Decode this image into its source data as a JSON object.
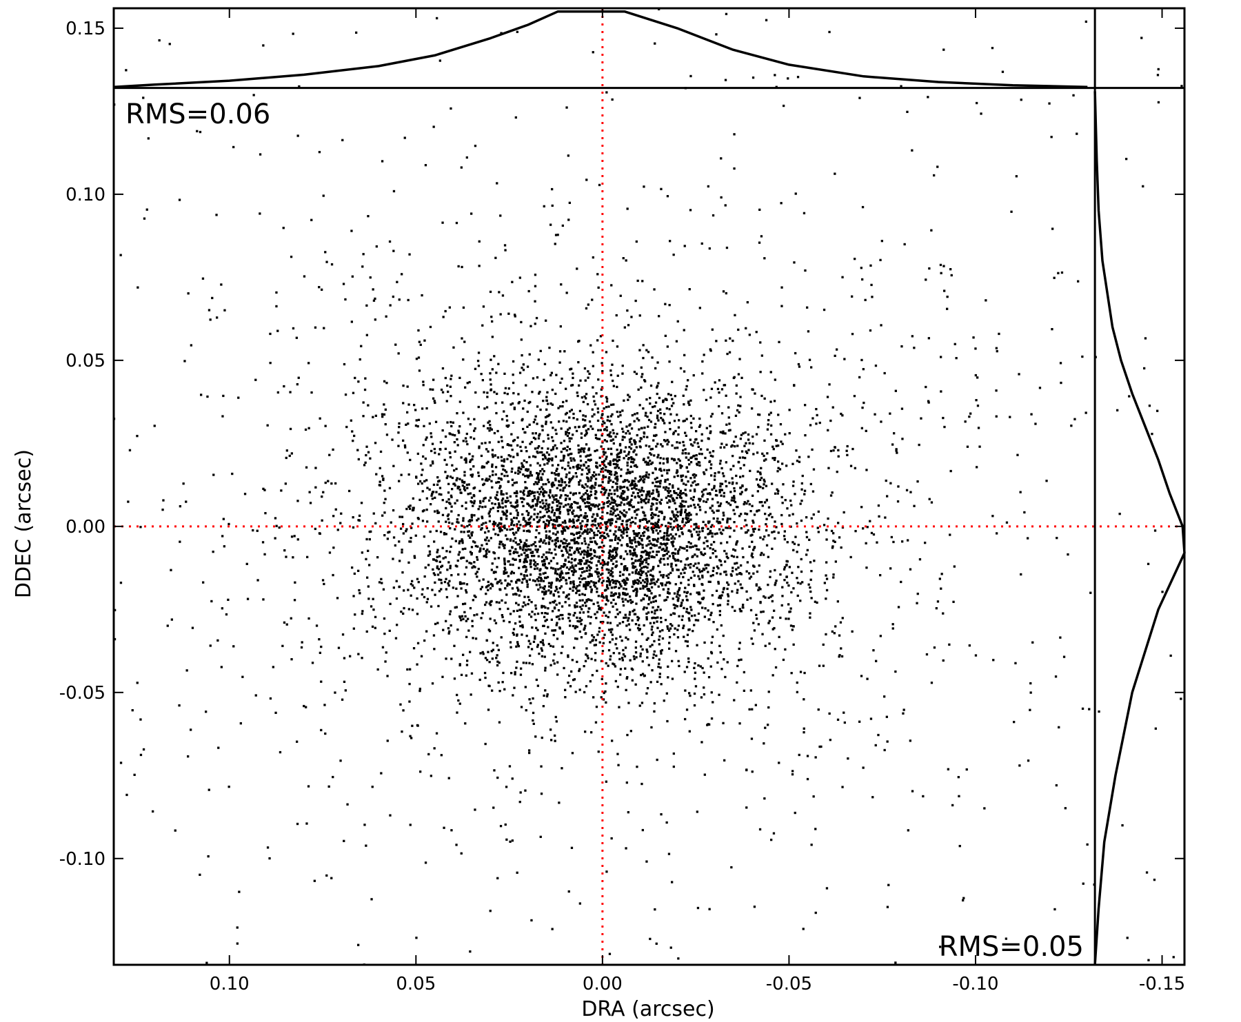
{
  "chart_data": {
    "type": "scatter",
    "xlabel": "DRA (arcsec)",
    "ylabel": "DDEC (arcsec)",
    "xlim": [
      0.131,
      -0.156
    ],
    "ylim": [
      -0.132,
      0.156
    ],
    "x_axis_direction": "reversed",
    "xticks": [
      0.1,
      0.05,
      0.0,
      -0.05,
      -0.1,
      -0.15
    ],
    "xtick_labels": [
      "0.10",
      "0.05",
      "0.00",
      "-0.05",
      "-0.10",
      "-0.15"
    ],
    "yticks": [
      0.15,
      0.1,
      0.05,
      0.0,
      -0.05,
      -0.1
    ],
    "ytick_labels": [
      "0.15",
      "0.10",
      "0.05",
      "0.00",
      "-0.05",
      "-0.10"
    ],
    "grid": false,
    "reference_lines": {
      "x": 0.0,
      "y": 0.0,
      "color": "#ff0000",
      "style": "dotted"
    },
    "annotations": [
      {
        "text": "RMS=0.06",
        "placement": "top-left"
      },
      {
        "text": "RMS=0.05",
        "placement": "bottom-right"
      }
    ],
    "point_distribution": {
      "approx_count": 6000,
      "x_center": 0.0,
      "y_center": 0.0,
      "x_rms": 0.06,
      "y_rms": 0.05,
      "marker": "small square",
      "color": "#000000"
    },
    "marginal_histograms": {
      "top": {
        "axis": "DRA",
        "baseline_y": 0.132,
        "x": [
          0.131,
          0.12,
          0.1,
          0.08,
          0.06,
          0.045,
          0.03,
          0.02,
          0.012,
          0.0,
          -0.006,
          -0.02,
          -0.035,
          -0.05,
          -0.07,
          -0.09,
          -0.11,
          -0.13
        ],
        "y": [
          0.1323,
          0.133,
          0.1342,
          0.136,
          0.1386,
          0.1418,
          0.147,
          0.151,
          0.155,
          0.155,
          0.155,
          0.15,
          0.1435,
          0.139,
          0.1355,
          0.1338,
          0.1328,
          0.1323
        ]
      },
      "right": {
        "axis": "DDEC",
        "baseline_x": -0.132,
        "y": [
          0.131,
          0.11,
          0.095,
          0.08,
          0.06,
          0.05,
          0.04,
          0.03,
          0.02,
          0.01,
          0.0,
          -0.008,
          -0.025,
          -0.05,
          -0.075,
          -0.095,
          -0.115,
          -0.132
        ],
        "x": [
          -0.132,
          -0.1325,
          -0.133,
          -0.134,
          -0.1367,
          -0.139,
          -0.142,
          -0.1455,
          -0.149,
          -0.152,
          -0.1555,
          -0.156,
          -0.149,
          -0.142,
          -0.1375,
          -0.1345,
          -0.133,
          -0.132
        ]
      }
    }
  }
}
